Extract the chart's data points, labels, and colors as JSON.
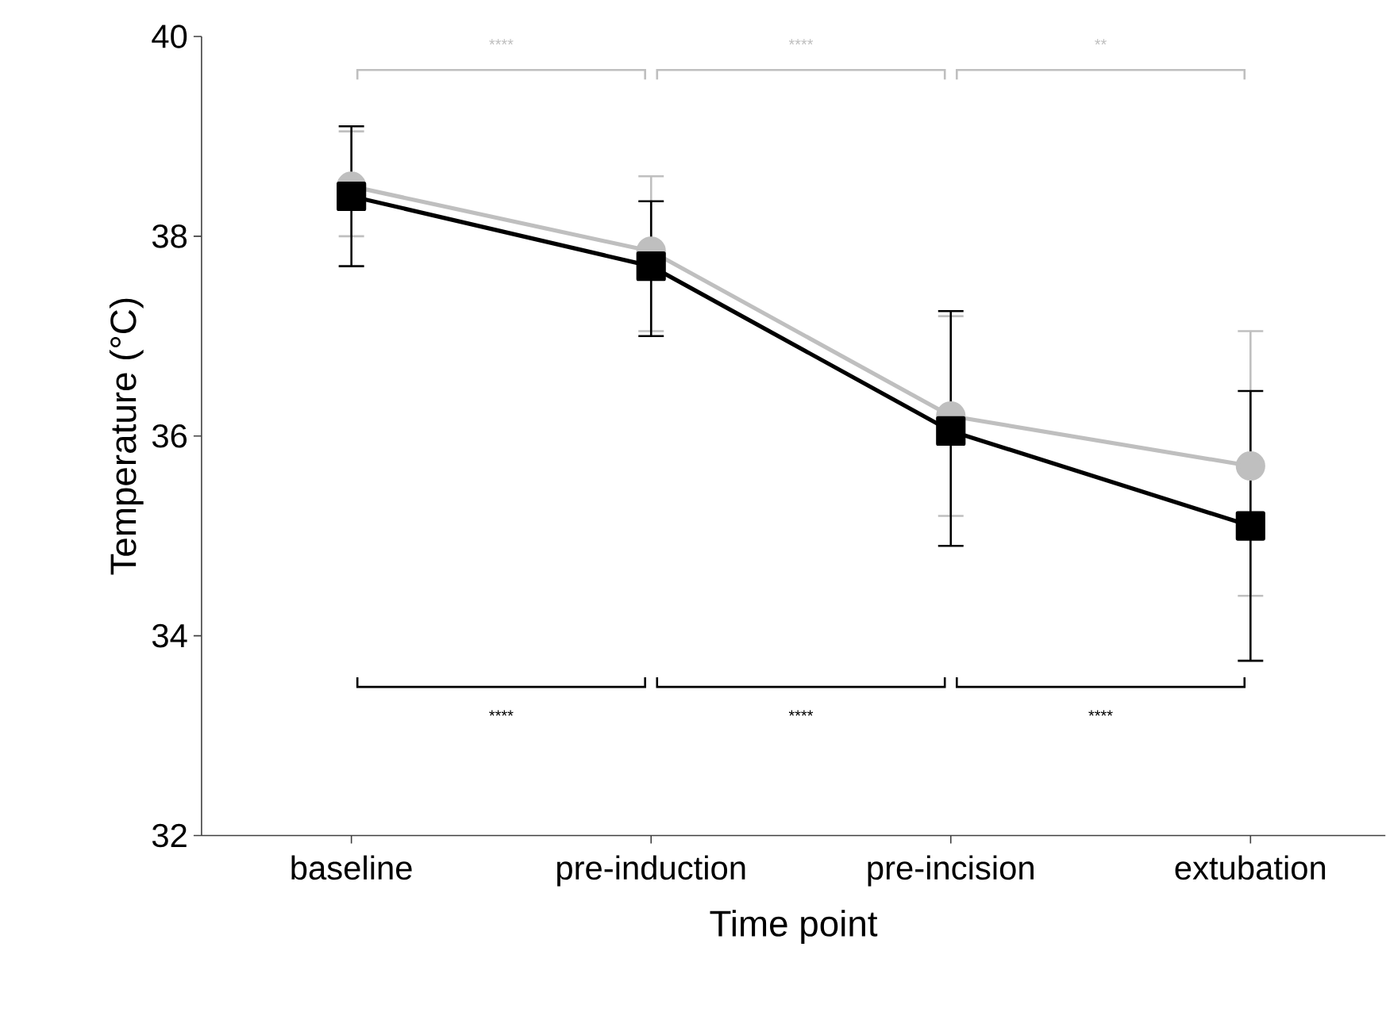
{
  "chart_data": {
    "type": "line",
    "xlabel": "Time point",
    "ylabel": "Temperature (°C)",
    "categories": [
      "baseline",
      "pre-induction",
      "pre-incision",
      "extubation"
    ],
    "ylim": [
      32,
      40
    ],
    "yticks": [
      32,
      34,
      36,
      38,
      40
    ],
    "line_style": "solid",
    "series": [
      {
        "color": "#bfbfbf",
        "marker": "circle",
        "values": [
          38.5,
          37.85,
          36.2,
          35.7
        ],
        "errors": [
          [
            38.0,
            39.05
          ],
          [
            37.05,
            38.6
          ],
          [
            35.2,
            37.2
          ],
          [
            34.4,
            37.05
          ]
        ]
      },
      {
        "color": "#000000",
        "marker": "square",
        "values": [
          38.4,
          37.7,
          36.05,
          35.1
        ],
        "errors": [
          [
            37.7,
            39.1
          ],
          [
            37.0,
            38.35
          ],
          [
            34.9,
            37.25
          ],
          [
            33.75,
            36.45
          ]
        ]
      }
    ],
    "annotations": [
      "****",
      "****",
      "**",
      "****",
      "****",
      "****"
    ]
  }
}
